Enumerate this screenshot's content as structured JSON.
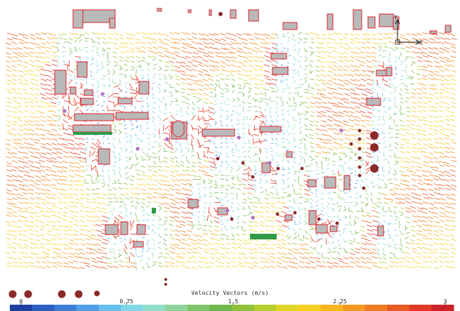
{
  "colorbar": {
    "title": "Velocity Vectors (m/s)",
    "ticks": [
      "0",
      "0.75",
      "1.5",
      "2.25",
      "3"
    ],
    "min": 0,
    "max": 3,
    "colors": [
      "#1f3fa0",
      "#2c5fbf",
      "#3b7fd6",
      "#4fa0e6",
      "#66bfee",
      "#7fd7e7",
      "#8fe0c8",
      "#8fd49c",
      "#7fc46a",
      "#6fb84b",
      "#8fc23a",
      "#b8cf30",
      "#e0d62a",
      "#f6cf23",
      "#f8b421",
      "#f49a20",
      "#ef7b22",
      "#e85a24",
      "#df3a26",
      "#c8222a"
    ]
  },
  "axes_indicator": {
    "x_label": "X",
    "y_label": "Y"
  },
  "colors": {
    "building_fill": "#b9b9b9",
    "building_edge": "#e0202a",
    "tree": "#8b2a2a",
    "shrub": "#b070c0",
    "hedge": "#2f9a4a",
    "background": "#ffffff"
  },
  "flow": {
    "direction": "west-to-east, slightly descending",
    "inflow_speed_mps": 2.3
  }
}
